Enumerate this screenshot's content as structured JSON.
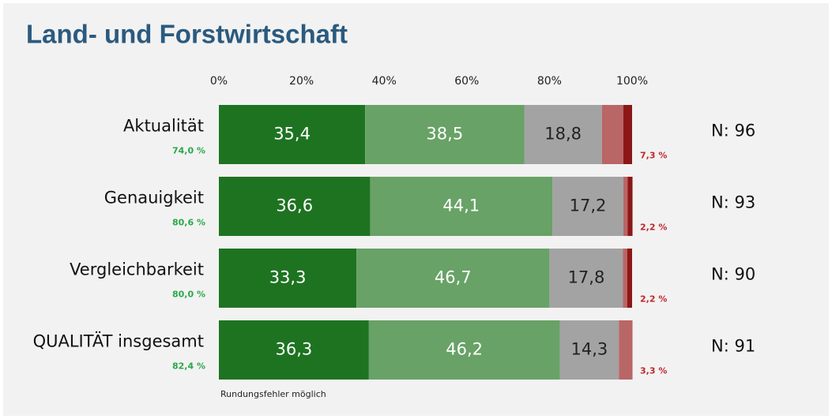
{
  "chart_data": {
    "type": "bar",
    "orientation": "horizontal",
    "stacked": true,
    "title": "Land- und Forstwirtschaft",
    "categories": [
      "Aktualität",
      "Genauigkeit",
      "Vergleichbarkeit",
      "QUALITÄT insgesamt"
    ],
    "series": [
      {
        "color": "#1e7321",
        "label_color": "#ffffff",
        "values": [
          35.4,
          36.6,
          33.3,
          36.3
        ],
        "value_labels": [
          "35,4",
          "36,6",
          "33,3",
          "36,3"
        ]
      },
      {
        "color": "#68a266",
        "label_color": "#ffffff",
        "values": [
          38.5,
          44.1,
          46.7,
          46.2
        ],
        "value_labels": [
          "38,5",
          "44,1",
          "46,7",
          "46,2"
        ]
      },
      {
        "color": "#a3a3a3",
        "label_color": "#222222",
        "values": [
          18.8,
          17.2,
          17.8,
          14.3
        ],
        "value_labels": [
          "18,8",
          "17,2",
          "17,8",
          "14,3"
        ]
      },
      {
        "color": "#b96666",
        "values": [
          5.2,
          1.0,
          1.0,
          3.3
        ]
      },
      {
        "color": "#8c1717",
        "values": [
          2.1,
          1.2,
          1.2,
          0
        ]
      }
    ],
    "positive_labels": [
      "74,0 %",
      "80,6 %",
      "80,0 %",
      "82,4 %"
    ],
    "negative_labels": [
      "7,3 %",
      "2,2 %",
      "2,2 %",
      "3,3 %"
    ],
    "n_labels": [
      "N: 96",
      "N: 93",
      "N: 90",
      "N: 91"
    ],
    "note": "Rundungsfehler möglich",
    "xlim": [
      0,
      100
    ],
    "xticks": [
      {
        "value": 0,
        "label": "0%"
      },
      {
        "value": 20,
        "label": "20%"
      },
      {
        "value": 40,
        "label": "40%"
      },
      {
        "value": 60,
        "label": "60%"
      },
      {
        "value": 80,
        "label": "80%"
      },
      {
        "value": 100,
        "label": "100%"
      }
    ]
  }
}
